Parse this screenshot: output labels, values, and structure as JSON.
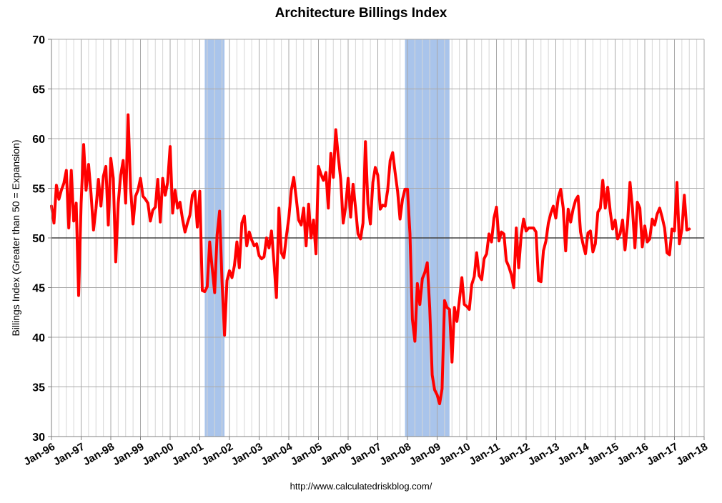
{
  "chart_data": {
    "type": "line",
    "title": "Architecture Billings Index",
    "xlabel": "",
    "ylabel": "Billings Index (Greater than 50 = Expansion)",
    "source": "http://www.calculatedriskblog.com/",
    "ylim": [
      30,
      70
    ],
    "yticks": [
      30,
      35,
      40,
      45,
      50,
      55,
      60,
      65,
      70
    ],
    "x_start": "Jan-96",
    "x_end": "Jan-18",
    "xtick_labels": [
      "Jan-96",
      "Jan-97",
      "Jan-98",
      "Jan-99",
      "Jan-00",
      "Jan-01",
      "Jan-02",
      "Jan-03",
      "Jan-04",
      "Jan-05",
      "Jan-06",
      "Jan-07",
      "Jan-08",
      "Jan-09",
      "Jan-10",
      "Jan-11",
      "Jan-12",
      "Jan-13",
      "Jan-14",
      "Jan-15",
      "Jan-16",
      "Jan-17",
      "Jan-18"
    ],
    "reference_line": 50,
    "grid": true,
    "colors": {
      "line": "#ff0000",
      "recession": "#a9c4eb",
      "grid": "#c0c0c0"
    },
    "recessions": [
      {
        "start": "Mar-01",
        "end": "Nov-01"
      },
      {
        "start": "Dec-07",
        "end": "Jun-09"
      }
    ],
    "series": [
      {
        "values": [
          53.2,
          51.5,
          55.3,
          53.9,
          54.8,
          55.5,
          56.8,
          51.0,
          56.8,
          51.7,
          53.5,
          44.2,
          53.5,
          59.4,
          54.8,
          57.4,
          54.5,
          50.8,
          53.0,
          55.9,
          53.2,
          56.2,
          57.2,
          51.3,
          58.0,
          56.0,
          47.6,
          53.5,
          56.3,
          57.8,
          53.5,
          62.4,
          55.0,
          51.4,
          54.2,
          54.8,
          56.0,
          54.2,
          53.9,
          53.5,
          51.7,
          52.8,
          53.1,
          55.9,
          51.6,
          56.0,
          54.3,
          55.6,
          59.2,
          52.5,
          54.8,
          53.0,
          53.6,
          51.9,
          50.6,
          51.5,
          52.3,
          54.3,
          54.7,
          51.1,
          54.7,
          44.7,
          44.6,
          45.1,
          49.6,
          47.0,
          44.5,
          50.3,
          52.7,
          45.6,
          40.2,
          45.7,
          46.7,
          46.0,
          47.2,
          49.6,
          47.0,
          51.5,
          52.2,
          49.2,
          50.6,
          49.8,
          49.2,
          49.4,
          48.2,
          47.9,
          48.1,
          50.0,
          49.0,
          50.7,
          47.5,
          44.0,
          53.0,
          48.5,
          48.0,
          50.1,
          52.0,
          54.8,
          56.1,
          54.0,
          51.8,
          51.3,
          53.0,
          49.2,
          53.4,
          50.0,
          51.8,
          48.4,
          57.2,
          56.4,
          55.8,
          56.6,
          53.0,
          58.5,
          56.1,
          60.9,
          58.2,
          55.9,
          51.5,
          53.1,
          56.0,
          52.1,
          55.4,
          53.0,
          50.4,
          49.9,
          51.5,
          59.7,
          53.4,
          51.4,
          55.6,
          57.1,
          56.3,
          52.9,
          53.3,
          53.2,
          54.8,
          57.8,
          58.6,
          56.6,
          54.7,
          51.9,
          53.9,
          54.9,
          54.9,
          50.4,
          41.8,
          39.6,
          45.4,
          43.3,
          45.9,
          46.5,
          47.5,
          43.0,
          36.2,
          34.7,
          34.2,
          33.3,
          34.8,
          43.7,
          43.0,
          42.8,
          37.5,
          43.0,
          41.6,
          43.7,
          46.0,
          43.3,
          43.1,
          42.8,
          45.3,
          46.1,
          48.5,
          46.2,
          45.8,
          47.9,
          48.4,
          50.4,
          49.6,
          52.0,
          53.1,
          49.7,
          50.6,
          50.4,
          47.7,
          47.1,
          46.3,
          45.0,
          51.0,
          47.0,
          50.3,
          51.9,
          50.7,
          51.0,
          51.0,
          51.0,
          50.6,
          45.7,
          45.6,
          48.7,
          49.7,
          51.5,
          52.5,
          53.2,
          52.0,
          54.1,
          54.9,
          53.0,
          48.7,
          52.9,
          51.6,
          52.9,
          53.8,
          54.2,
          50.6,
          49.4,
          48.4,
          50.5,
          50.7,
          48.6,
          49.4,
          52.6,
          53.0,
          55.8,
          53.0,
          55.1,
          52.7,
          50.9,
          51.8,
          49.9,
          50.4,
          51.8,
          48.8,
          51.4,
          55.6,
          53.0,
          49.0,
          53.6,
          53.0,
          49.1,
          51.2,
          49.6,
          49.9,
          51.9,
          51.3,
          52.4,
          53.0,
          52.1,
          51.0,
          48.5,
          48.3,
          50.9,
          50.7,
          55.6,
          49.4,
          50.9,
          54.3,
          50.8,
          50.9
        ]
      }
    ]
  }
}
